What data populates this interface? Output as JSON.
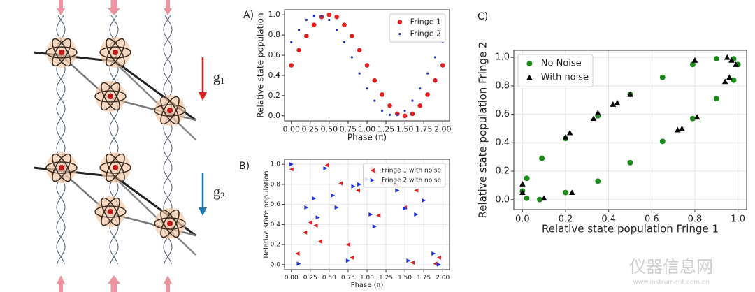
{
  "diagram": {
    "gravity_labels": [
      {
        "symbol": "g",
        "subscript": "1",
        "color": "#e02020"
      },
      {
        "symbol": "g",
        "subscript": "2",
        "color": "#1f77b4"
      }
    ]
  },
  "watermark": {
    "name": "仪器信息网",
    "url": "www.instrument.com.cn"
  },
  "chart_data": [
    {
      "type": "scatter",
      "panel_label": "A)",
      "x_label": "Phase (π)",
      "y_label": "Relative state population",
      "x": [
        0,
        0.1,
        0.2,
        0.3,
        0.4,
        0.5,
        0.6,
        0.7,
        0.8,
        0.9,
        1.0,
        1.1,
        1.2,
        1.3,
        1.4,
        1.5,
        1.6,
        1.7,
        1.8,
        1.9,
        2.0
      ],
      "series": [
        {
          "name": "Fringe 1",
          "color": "#e02020",
          "marker": "circle",
          "values": [
            0.5,
            0.65,
            0.79,
            0.9,
            0.98,
            1.0,
            0.98,
            0.9,
            0.79,
            0.65,
            0.5,
            0.35,
            0.21,
            0.1,
            0.02,
            0.0,
            0.02,
            0.1,
            0.21,
            0.35,
            0.5
          ]
        },
        {
          "name": "Fringe 2",
          "color": "#2030c0",
          "marker": "dot",
          "values": [
            0.73,
            0.85,
            0.95,
            0.99,
            0.99,
            0.95,
            0.85,
            0.73,
            0.58,
            0.42,
            0.27,
            0.15,
            0.05,
            0.01,
            0.01,
            0.05,
            0.15,
            0.27,
            0.42,
            0.58,
            0.73
          ]
        }
      ],
      "xlim": [
        -0.09,
        2.09
      ],
      "ylim": [
        -0.05,
        1.05
      ],
      "xticks": [
        {
          "value": 0,
          "label": "0.00"
        },
        {
          "value": 0.25,
          "label": "0.25"
        },
        {
          "value": 0.5,
          "label": "0.50"
        },
        {
          "value": 0.75,
          "label": "0.75"
        },
        {
          "value": 1,
          "label": "1.00"
        },
        {
          "value": 1.25,
          "label": "1.25"
        },
        {
          "value": 1.5,
          "label": "1.50"
        },
        {
          "value": 1.75,
          "label": "1.75"
        },
        {
          "value": 2,
          "label": "2.00"
        }
      ],
      "yticks": [
        {
          "value": 0,
          "label": "0.0"
        },
        0.2,
        0.4,
        0.6,
        0.8,
        {
          "value": 1,
          "label": "1.0"
        }
      ],
      "grid": false,
      "legend": "upper right"
    },
    {
      "type": "scatter",
      "panel_label": "B)",
      "x_label": "Phase (π)",
      "y_label": "Relative state population",
      "series": [
        {
          "name": "Fringe 1 with noise",
          "color": "#e02020",
          "marker": "triangle-left",
          "x": [
            0.0,
            0.08,
            0.18,
            0.25,
            0.32,
            0.38,
            0.47,
            0.65,
            0.75,
            0.8,
            0.88,
            1.05,
            1.1,
            1.15,
            1.2,
            1.38,
            1.5,
            1.6,
            1.65,
            1.9,
            1.95
          ],
          "values": [
            0.95,
            0.11,
            0.32,
            0.42,
            0.39,
            0.23,
            0.99,
            0.81,
            0.2,
            0.07,
            0.74,
            0.96,
            0.92,
            0.49,
            0.81,
            0.79,
            0.57,
            0.02,
            0.74,
            0.01,
            0.07
          ]
        },
        {
          "name": "Fringe 2 with noise",
          "color": "#2030e0",
          "marker": "triangle-right",
          "x": [
            0.0,
            0.1,
            0.2,
            0.3,
            0.35,
            0.45,
            0.55,
            0.6,
            0.75,
            0.82,
            0.9,
            1.0,
            1.05,
            1.1,
            1.4,
            1.5,
            1.55,
            1.65,
            1.75,
            1.88,
            1.95
          ],
          "values": [
            1.0,
            0.01,
            0.57,
            0.66,
            0.47,
            0.96,
            0.69,
            0.57,
            0.04,
            0.78,
            0.8,
            0.85,
            0.5,
            0.38,
            0.74,
            0.56,
            0.04,
            0.5,
            0.64,
            0.11,
            0.0
          ]
        }
      ],
      "xlim": [
        -0.09,
        2.09
      ],
      "ylim": [
        -0.05,
        1.05
      ],
      "xticks": [
        {
          "value": 0,
          "label": "0.00"
        },
        {
          "value": 0.25,
          "label": "0.25"
        },
        {
          "value": 0.5,
          "label": "0.50"
        },
        {
          "value": 0.75,
          "label": "0.75"
        },
        {
          "value": 1,
          "label": "1.00"
        },
        {
          "value": 1.25,
          "label": "1.25"
        },
        {
          "value": 1.5,
          "label": "1.50"
        },
        {
          "value": 1.75,
          "label": "1.75"
        },
        {
          "value": 2,
          "label": "2.00"
        }
      ],
      "yticks": [
        {
          "value": 0,
          "label": "0.0"
        },
        0.2,
        0.4,
        0.6,
        0.8,
        {
          "value": 1,
          "label": "1.0"
        }
      ],
      "grid": true,
      "legend": "upper right"
    },
    {
      "type": "scatter",
      "panel_label": "C)",
      "x_label": "Relative state population Fringe 1",
      "y_label": "Relative state population Fringe 2",
      "series": [
        {
          "name": "No Noise",
          "color": "#1a8a1a",
          "marker": "circle",
          "x": [
            0.0,
            0.02,
            0.02,
            0.09,
            0.08,
            0.2,
            0.2,
            0.35,
            0.35,
            0.5,
            0.5,
            0.65,
            0.65,
            0.79,
            0.79,
            0.9,
            0.9,
            0.98,
            0.98,
            1.0
          ],
          "values": [
            0.06,
            0.01,
            0.15,
            0.29,
            0.0,
            0.05,
            0.43,
            0.13,
            0.59,
            0.26,
            0.74,
            0.41,
            0.86,
            0.57,
            0.95,
            0.71,
            0.99,
            0.84,
            0.99,
            0.95
          ]
        },
        {
          "name": "With noise",
          "color": "#000000",
          "marker": "triangle-up",
          "x": [
            0.0,
            0.0,
            0.1,
            0.2,
            0.22,
            0.23,
            0.33,
            0.35,
            0.42,
            0.44,
            0.5,
            0.72,
            0.74,
            0.81,
            0.8,
            0.94,
            0.95,
            0.97,
            0.99,
            0.96
          ],
          "values": [
            0.11,
            0.05,
            0.01,
            0.44,
            0.47,
            0.05,
            0.57,
            0.61,
            0.67,
            0.68,
            0.74,
            0.49,
            0.5,
            0.58,
            0.98,
            0.83,
            1.0,
            0.98,
            0.95,
            0.86
          ]
        }
      ],
      "xlim": [
        -0.04,
        1.04
      ],
      "ylim": [
        -0.07,
        1.05
      ],
      "xticks": [
        {
          "value": 0,
          "label": "0.0"
        },
        0.2,
        0.4,
        0.6,
        0.8,
        {
          "value": 1,
          "label": "1.0"
        }
      ],
      "yticks": [
        {
          "value": 0,
          "label": "0.0"
        },
        0.2,
        0.4,
        0.6,
        0.8,
        {
          "value": 1,
          "label": "1.0"
        }
      ],
      "grid": true,
      "legend": "upper left"
    }
  ]
}
